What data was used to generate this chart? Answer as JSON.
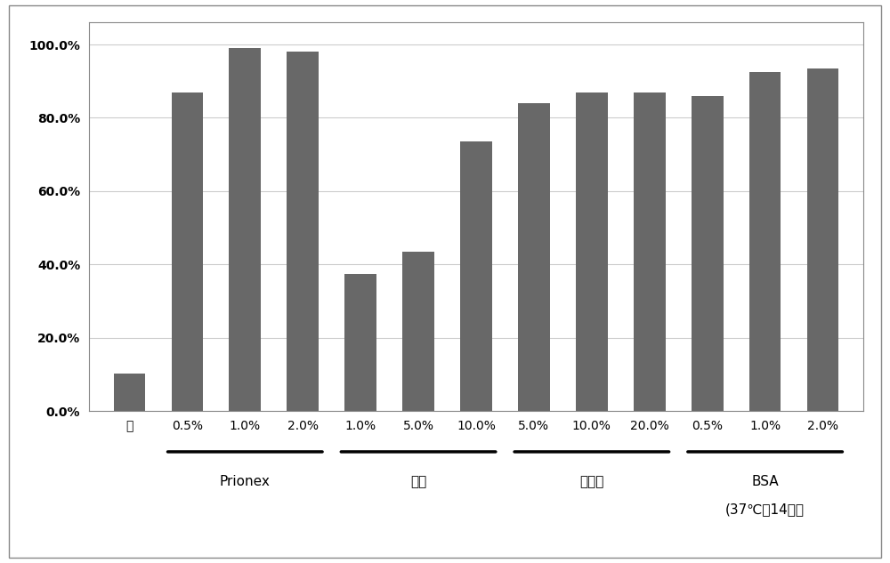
{
  "bars": [
    {
      "label": "无",
      "value": 10.2
    },
    {
      "label": "0.5%",
      "value": 87.0,
      "group": "Prionex"
    },
    {
      "label": "1.0%",
      "value": 99.0,
      "group": "Prionex"
    },
    {
      "label": "2.0%",
      "value": 98.0,
      "group": "Prionex"
    },
    {
      "label": "1.0%",
      "value": 37.5,
      "group": "甘油"
    },
    {
      "label": "5.0%",
      "value": 43.5,
      "group": "甘油"
    },
    {
      "label": "10.0%",
      "value": 73.5,
      "group": "甘油"
    },
    {
      "label": "5.0%",
      "value": 84.0,
      "group": "海藻糖"
    },
    {
      "label": "10.0%",
      "value": 87.0,
      "group": "海藻糖"
    },
    {
      "label": "20.0%",
      "value": 87.0,
      "group": "海藻糖"
    },
    {
      "label": "0.5%",
      "value": 86.0,
      "group": "BSA"
    },
    {
      "label": "1.0%",
      "value": 92.5,
      "group": "BSA"
    },
    {
      "label": "2.0%",
      "value": 93.5,
      "group": "BSA"
    }
  ],
  "group_configs": [
    {
      "name": "Prionex",
      "indices": [
        1,
        2,
        3
      ],
      "label": "Prionex",
      "label2": null
    },
    {
      "name": "甘油",
      "indices": [
        4,
        5,
        6
      ],
      "label": "甘油",
      "label2": null
    },
    {
      "name": "海藻糖",
      "indices": [
        7,
        8,
        9
      ],
      "label": "海藻糖",
      "label2": null
    },
    {
      "name": "BSA",
      "indices": [
        10,
        11,
        12
      ],
      "label": "BSA",
      "label2": "(37℃，14天）"
    }
  ],
  "bar_color": "#686868",
  "ylim": [
    0,
    106
  ],
  "yticks": [
    0,
    20,
    40,
    60,
    80,
    100
  ],
  "ytick_labels": [
    "0.0%",
    "20.0%",
    "40.0%",
    "60.0%",
    "80.0%",
    "100.0%"
  ],
  "background_color": "#ffffff",
  "bar_width": 0.55,
  "group_label_fontsize": 11,
  "tick_fontsize": 10,
  "border_color": "#aaaaaa"
}
